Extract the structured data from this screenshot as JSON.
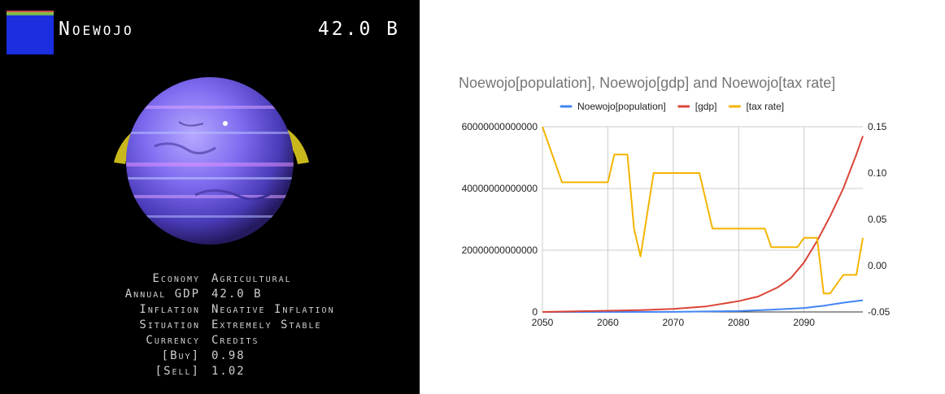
{
  "header": {
    "planet_name": "Noewojo",
    "gdp": "42.0 B",
    "flag_colors": [
      "#1b2ee0",
      "#c94c4c",
      "#8fbf3f",
      "#6fb05a"
    ]
  },
  "stats": [
    {
      "label": "Economy",
      "value": "Agricultural"
    },
    {
      "label": "Annual GDP",
      "value": "42.0 B"
    },
    {
      "label": "Inflation",
      "value": "Negative Inflation"
    },
    {
      "label": "Situation",
      "value": "Extremely Stable"
    },
    {
      "label": "Currency",
      "value": "Credits"
    },
    {
      "label": "[Buy]",
      "value": "0.98"
    },
    {
      "label": "[Sell]",
      "value": "1.02"
    }
  ],
  "chart_data": {
    "type": "line",
    "title": "Noewojo[population], Noewojo[gdp] and Noewojo[tax rate]",
    "legend_position": "top",
    "grid": true,
    "x": {
      "min": 2050,
      "max": 2099,
      "ticks": [
        "2050",
        "2060",
        "2070",
        "2080",
        "2090"
      ]
    },
    "y_left": {
      "min": 0,
      "max": 60000000000000,
      "ticks": [
        "0",
        "20000000000000",
        "40000000000000",
        "60000000000000"
      ]
    },
    "y_right": {
      "min": -0.05,
      "max": 0.15,
      "ticks": [
        "-0.05",
        "0.00",
        "0.05",
        "0.10",
        "0.15"
      ]
    },
    "series": [
      {
        "name": "Noewojo[population]",
        "color": "#4285f4",
        "axis": "left",
        "points": [
          [
            2050,
            0
          ],
          [
            2060,
            0
          ],
          [
            2070,
            30000000000
          ],
          [
            2080,
            300000000000
          ],
          [
            2085,
            700000000000
          ],
          [
            2090,
            1300000000000
          ],
          [
            2093,
            2000000000000
          ],
          [
            2096,
            3000000000000
          ],
          [
            2099,
            3800000000000
          ]
        ]
      },
      {
        "name": "[gdp]",
        "color": "#db4437",
        "axis": "left",
        "points": [
          [
            2050,
            0
          ],
          [
            2055,
            200000000000
          ],
          [
            2060,
            400000000000
          ],
          [
            2065,
            600000000000
          ],
          [
            2070,
            1000000000000
          ],
          [
            2075,
            1800000000000
          ],
          [
            2080,
            3500000000000
          ],
          [
            2083,
            5000000000000
          ],
          [
            2086,
            8000000000000
          ],
          [
            2088,
            11000000000000
          ],
          [
            2090,
            16000000000000
          ],
          [
            2092,
            23000000000000
          ],
          [
            2094,
            31000000000000
          ],
          [
            2096,
            40000000000000
          ],
          [
            2098,
            51000000000000
          ],
          [
            2099,
            57000000000000
          ]
        ]
      },
      {
        "name": "[tax rate]",
        "color": "#f4b400",
        "axis": "right",
        "points": [
          [
            2050,
            0.15
          ],
          [
            2053,
            0.09
          ],
          [
            2060,
            0.09
          ],
          [
            2061,
            0.12
          ],
          [
            2063,
            0.12
          ],
          [
            2064,
            0.04
          ],
          [
            2065,
            0.01
          ],
          [
            2067,
            0.1
          ],
          [
            2074,
            0.1
          ],
          [
            2076,
            0.04
          ],
          [
            2084,
            0.04
          ],
          [
            2085,
            0.02
          ],
          [
            2089,
            0.02
          ],
          [
            2090,
            0.03
          ],
          [
            2092,
            0.03
          ],
          [
            2093,
            -0.03
          ],
          [
            2094,
            -0.03
          ],
          [
            2096,
            -0.01
          ],
          [
            2098,
            -0.01
          ],
          [
            2099,
            0.03
          ]
        ]
      }
    ]
  }
}
